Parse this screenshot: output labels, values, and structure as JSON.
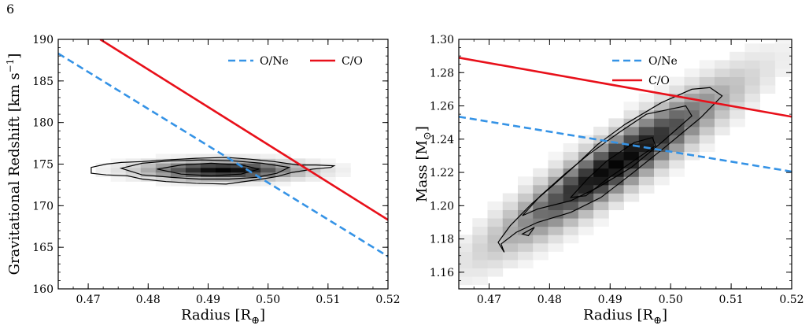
{
  "page_number": "6",
  "colors": {
    "ONe": "#3593e6",
    "CO": "#e8101a",
    "contour": "#000000"
  },
  "chart_data": [
    {
      "type": "line",
      "id": "left",
      "xlabel": "Radius [R",
      "xlabel_sub": "⊕",
      "xlabel_close": "]",
      "ylabel": "Gravitational Redshift [km s",
      "ylabel_sup": "−1",
      "ylabel_close": "]",
      "xlim": [
        0.465,
        0.52
      ],
      "ylim": [
        160,
        190
      ],
      "xticks": [
        0.47,
        0.48,
        0.49,
        0.5,
        0.51,
        0.52
      ],
      "xtick_labels": [
        "0.47",
        "0.48",
        "0.49",
        "0.50",
        "0.51",
        "0.52"
      ],
      "yticks": [
        160,
        165,
        170,
        175,
        180,
        185,
        190
      ],
      "ytick_labels": [
        "160",
        "165",
        "170",
        "175",
        "180",
        "185",
        "190"
      ],
      "legend": [
        "O/Ne",
        "C/O"
      ],
      "legend_position": "top-right",
      "series": [
        {
          "name": "O/Ne",
          "style": "dashed",
          "x": [
            0.465,
            0.52
          ],
          "y": [
            188.3,
            163.9
          ]
        },
        {
          "name": "C/O",
          "style": "solid",
          "x": [
            0.472,
            0.52
          ],
          "y": [
            190.0,
            168.3
          ]
        }
      ],
      "posterior": {
        "center": [
          0.4925,
          174.3
        ],
        "contours": [
          [
            [
              0.4705,
              174.6
            ],
            [
              0.473,
              175.0
            ],
            [
              0.4755,
              175.2
            ],
            [
              0.479,
              175.3
            ],
            [
              0.483,
              175.5
            ],
            [
              0.488,
              175.7
            ],
            [
              0.493,
              175.8
            ],
            [
              0.497,
              175.6
            ],
            [
              0.501,
              175.3
            ],
            [
              0.505,
              174.9
            ],
            [
              0.508,
              174.9
            ],
            [
              0.511,
              174.8
            ],
            [
              0.5105,
              174.6
            ],
            [
              0.5075,
              174.4
            ],
            [
              0.504,
              174.0
            ],
            [
              0.5015,
              173.5
            ],
            [
              0.498,
              173.1
            ],
            [
              0.493,
              172.6
            ],
            [
              0.488,
              172.7
            ],
            [
              0.483,
              172.9
            ],
            [
              0.479,
              173.2
            ],
            [
              0.4765,
              173.6
            ],
            [
              0.473,
              173.7
            ],
            [
              0.4705,
              173.9
            ]
          ],
          [
            [
              0.4755,
              174.5
            ],
            [
              0.479,
              175.1
            ],
            [
              0.484,
              175.4
            ],
            [
              0.489,
              175.5
            ],
            [
              0.494,
              175.4
            ],
            [
              0.499,
              175.1
            ],
            [
              0.5035,
              174.6
            ],
            [
              0.5015,
              173.9
            ],
            [
              0.498,
              173.4
            ],
            [
              0.4935,
              173.2
            ],
            [
              0.4885,
              173.2
            ],
            [
              0.484,
              173.4
            ],
            [
              0.479,
              173.7
            ]
          ],
          [
            [
              0.4815,
              174.4
            ],
            [
              0.4855,
              174.9
            ],
            [
              0.4905,
              175.1
            ],
            [
              0.4955,
              174.9
            ],
            [
              0.4985,
              174.4
            ],
            [
              0.4955,
              173.8
            ],
            [
              0.4905,
              173.6
            ],
            [
              0.4855,
              173.8
            ]
          ]
        ]
      }
    },
    {
      "type": "line",
      "id": "right",
      "xlabel": "Radius [R",
      "xlabel_sub": "⊕",
      "xlabel_close": "]",
      "ylabel": "Mass [M",
      "ylabel_sub": "⊙",
      "ylabel_close": "]",
      "xlim": [
        0.465,
        0.52
      ],
      "ylim": [
        1.15,
        1.3
      ],
      "xticks": [
        0.47,
        0.48,
        0.49,
        0.5,
        0.51,
        0.52
      ],
      "xtick_labels": [
        "0.47",
        "0.48",
        "0.49",
        "0.50",
        "0.51",
        "0.52"
      ],
      "yticks": [
        1.16,
        1.18,
        1.2,
        1.22,
        1.24,
        1.26,
        1.28,
        1.3
      ],
      "ytick_labels": [
        "1.16",
        "1.18",
        "1.20",
        "1.22",
        "1.24",
        "1.26",
        "1.28",
        "1.30"
      ],
      "legend": [
        "O/Ne",
        "C/O"
      ],
      "legend_position": "top-right",
      "series": [
        {
          "name": "O/Ne",
          "style": "dashed",
          "x": [
            0.465,
            0.52
          ],
          "y": [
            1.2535,
            1.2205
          ]
        },
        {
          "name": "C/O",
          "style": "solid",
          "x": [
            0.465,
            0.52
          ],
          "y": [
            1.289,
            1.2535
          ]
        }
      ],
      "posterior": {
        "center": [
          0.491,
          1.225
        ],
        "contours": [
          [
            [
              0.4715,
              1.178
            ],
            [
              0.4735,
              1.188
            ],
            [
              0.477,
              1.201
            ],
            [
              0.4805,
              1.212
            ],
            [
              0.4845,
              1.225
            ],
            [
              0.488,
              1.237
            ],
            [
              0.4925,
              1.249
            ],
            [
              0.4985,
              1.262
            ],
            [
              0.5035,
              1.27
            ],
            [
              0.5065,
              1.271
            ],
            [
              0.5085,
              1.266
            ],
            [
              0.505,
              1.253
            ],
            [
              0.499,
              1.235
            ],
            [
              0.4935,
              1.219
            ],
            [
              0.4885,
              1.205
            ],
            [
              0.4835,
              1.196
            ],
            [
              0.478,
              1.19
            ],
            [
              0.4745,
              1.184
            ],
            [
              0.472,
              1.177
            ],
            [
              0.4725,
              1.172
            ]
          ],
          [
            [
              0.4755,
              1.194
            ],
            [
              0.4785,
              1.206
            ],
            [
              0.4825,
              1.219
            ],
            [
              0.4865,
              1.231
            ],
            [
              0.4915,
              1.244
            ],
            [
              0.496,
              1.255
            ],
            [
              0.5025,
              1.26
            ],
            [
              0.5035,
              1.254
            ],
            [
              0.4985,
              1.238
            ],
            [
              0.4935,
              1.223
            ],
            [
              0.488,
              1.211
            ],
            [
              0.4835,
              1.203
            ],
            [
              0.478,
              1.198
            ]
          ],
          [
            [
              0.4835,
              1.205
            ],
            [
              0.4865,
              1.217
            ],
            [
              0.4895,
              1.227
            ],
            [
              0.494,
              1.238
            ],
            [
              0.497,
              1.241
            ],
            [
              0.4975,
              1.236
            ],
            [
              0.4935,
              1.226
            ],
            [
              0.4895,
              1.216
            ],
            [
              0.486,
              1.206
            ]
          ],
          [
            [
              0.4755,
              1.183
            ],
            [
              0.4775,
              1.187
            ],
            [
              0.4765,
              1.182
            ]
          ]
        ]
      }
    }
  ]
}
